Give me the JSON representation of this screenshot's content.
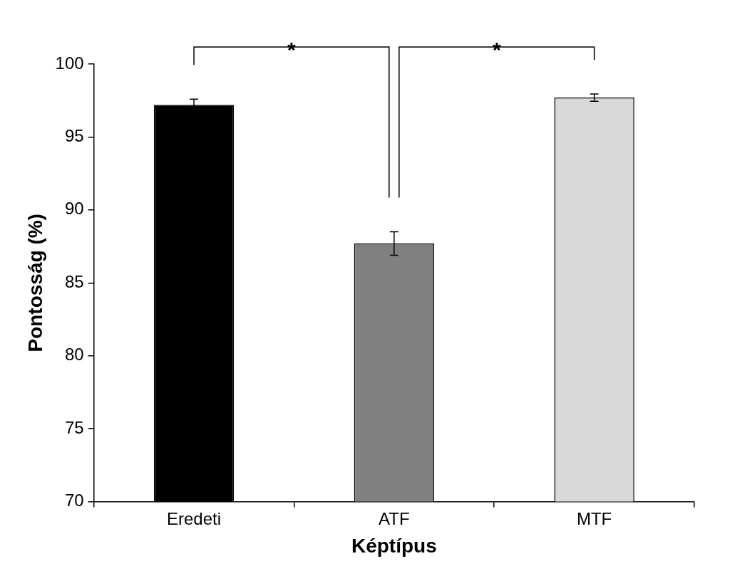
{
  "chart_data": {
    "type": "bar",
    "categories": [
      "Eredeti",
      "ATF",
      "MTF"
    ],
    "values": [
      97.2,
      87.7,
      97.7
    ],
    "errors": [
      0.4,
      0.8,
      0.25
    ],
    "colors": [
      "#000000",
      "#808080",
      "#d9d9d9"
    ],
    "x_label": "Képtípus",
    "y_label": "Pontosság (%)",
    "ylim": [
      70,
      100
    ],
    "yticks": [
      70,
      75,
      80,
      85,
      90,
      95,
      100
    ],
    "grid": false,
    "legend": false,
    "data_labels": false,
    "annotations": [
      {
        "from": "Eredeti",
        "to": "ATF",
        "label": "*"
      },
      {
        "from": "ATF",
        "to": "MTF",
        "label": "*"
      }
    ]
  }
}
